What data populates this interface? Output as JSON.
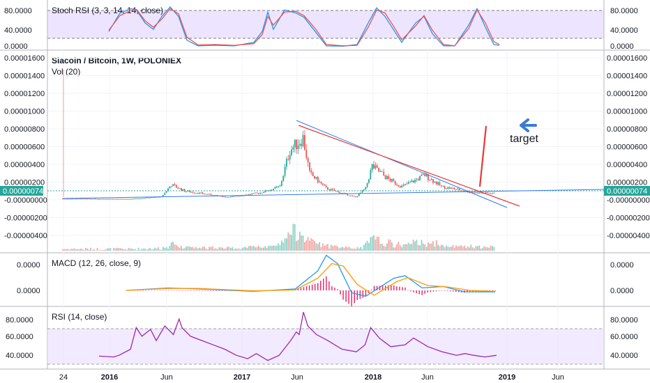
{
  "chart_data": [
    {
      "type": "line",
      "pane": "stoch",
      "title": "Stoch RSI (3, 3, 14, 14, close)",
      "ylim": [
        0,
        100
      ],
      "y_ticks": [
        "80.0000",
        "40.0000",
        "0.0000"
      ],
      "bands": [
        20,
        80
      ],
      "series": [
        {
          "color": "#2196f3",
          "points": [
            [
              0,
              35
            ],
            [
              8,
              78
            ],
            [
              16,
              88
            ],
            [
              20,
              84
            ],
            [
              26,
              55
            ],
            [
              32,
              40
            ],
            [
              38,
              70
            ],
            [
              44,
              92
            ],
            [
              50,
              70
            ],
            [
              56,
              15
            ],
            [
              64,
              2
            ],
            [
              76,
              3
            ],
            [
              90,
              2
            ],
            [
              104,
              10
            ],
            [
              110,
              35
            ],
            [
              114,
              80
            ],
            [
              118,
              40
            ],
            [
              126,
              85
            ],
            [
              134,
              78
            ],
            [
              140,
              68
            ],
            [
              148,
              35
            ],
            [
              156,
              2
            ],
            [
              168,
              1
            ],
            [
              178,
              5
            ],
            [
              186,
              55
            ],
            [
              192,
              90
            ],
            [
              198,
              70
            ],
            [
              204,
              40
            ],
            [
              210,
              10
            ],
            [
              220,
              55
            ],
            [
              226,
              70
            ],
            [
              232,
              30
            ],
            [
              240,
              2
            ],
            [
              248,
              2
            ],
            [
              258,
              50
            ],
            [
              264,
              88
            ],
            [
              270,
              45
            ],
            [
              276,
              5
            ],
            [
              280,
              3
            ]
          ]
        },
        {
          "color": "#ef5350",
          "points": [
            [
              0,
              38
            ],
            [
              8,
              72
            ],
            [
              16,
              84
            ],
            [
              20,
              86
            ],
            [
              26,
              60
            ],
            [
              32,
              45
            ],
            [
              38,
              64
            ],
            [
              44,
              88
            ],
            [
              50,
              76
            ],
            [
              56,
              22
            ],
            [
              64,
              4
            ],
            [
              76,
              5
            ],
            [
              90,
              3
            ],
            [
              104,
              7
            ],
            [
              110,
              28
            ],
            [
              114,
              70
            ],
            [
              118,
              50
            ],
            [
              126,
              80
            ],
            [
              134,
              82
            ],
            [
              140,
              72
            ],
            [
              148,
              42
            ],
            [
              156,
              5
            ],
            [
              168,
              2
            ],
            [
              178,
              3
            ],
            [
              186,
              45
            ],
            [
              192,
              85
            ],
            [
              198,
              78
            ],
            [
              204,
              48
            ],
            [
              210,
              16
            ],
            [
              220,
              48
            ],
            [
              226,
              72
            ],
            [
              232,
              38
            ],
            [
              240,
              5
            ],
            [
              248,
              2
            ],
            [
              258,
              42
            ],
            [
              264,
              85
            ],
            [
              270,
              55
            ],
            [
              276,
              12
            ],
            [
              280,
              5
            ]
          ]
        }
      ]
    },
    {
      "type": "bar",
      "pane": "price",
      "title": "Siacoin / Bitcoin, 1W, POLONIEX",
      "subtitle": "Vol (20)",
      "y_ticks": [
        "0.00001600",
        "0.00001400",
        "0.00001200",
        "0.00001000",
        "0.00000800",
        "0.00000600",
        "0.00000400",
        "0.00000200",
        "-0.00000000",
        "-0.00000200",
        "-0.00000400"
      ],
      "last_price": "0.00000074",
      "annotation": "target",
      "x_ticks": [
        "24",
        "2016",
        "Jun",
        "2017",
        "Jun",
        "2018",
        "Jun",
        "2019",
        "Jun"
      ],
      "close_profile": [
        [
          0,
          1.4e-07
        ],
        [
          40,
          1e-07
        ],
        [
          60,
          3.5e-07
        ],
        [
          66,
          1.7e-06
        ],
        [
          74,
          1e-06
        ],
        [
          100,
          3e-07
        ],
        [
          120,
          8e-07
        ],
        [
          132,
          1.5e-06
        ],
        [
          138,
          5.6e-06
        ],
        [
          146,
          7e-06
        ],
        [
          150,
          3e-06
        ],
        [
          160,
          1.3e-06
        ],
        [
          178,
          3e-07
        ],
        [
          184,
          1.3e-06
        ],
        [
          188,
          3.8e-06
        ],
        [
          198,
          2.3e-06
        ],
        [
          206,
          1.5e-06
        ],
        [
          214,
          2.2e-06
        ],
        [
          220,
          2.8e-06
        ],
        [
          230,
          1.5e-06
        ],
        [
          250,
          8e-07
        ],
        [
          262,
          7.4e-07
        ]
      ]
    },
    {
      "type": "line",
      "pane": "macd",
      "title": "MACD (12, 26, close, 9)",
      "y_ticks": [
        "0.0000",
        "0.0000"
      ],
      "series": [
        {
          "color": "#2196f3",
          "points": [
            [
              0,
              0
            ],
            [
              30,
              5
            ],
            [
              50,
              3
            ],
            [
              90,
              -2
            ],
            [
              120,
              3
            ],
            [
              136,
              40
            ],
            [
              142,
              72
            ],
            [
              150,
              55
            ],
            [
              160,
              -5
            ],
            [
              170,
              -12
            ],
            [
              190,
              25
            ],
            [
              198,
              30
            ],
            [
              210,
              5
            ],
            [
              225,
              8
            ],
            [
              240,
              -3
            ],
            [
              262,
              -3
            ]
          ]
        },
        {
          "color": "#ff9800",
          "points": [
            [
              0,
              0
            ],
            [
              30,
              4
            ],
            [
              50,
              4
            ],
            [
              90,
              -1
            ],
            [
              120,
              1
            ],
            [
              136,
              25
            ],
            [
              146,
              55
            ],
            [
              154,
              50
            ],
            [
              164,
              12
            ],
            [
              176,
              -10
            ],
            [
              192,
              18
            ],
            [
              200,
              26
            ],
            [
              214,
              10
            ],
            [
              228,
              7
            ],
            [
              244,
              0
            ],
            [
              262,
              -2
            ]
          ]
        }
      ]
    },
    {
      "type": "line",
      "pane": "rsi",
      "title": "RSI (14, close)",
      "ylim": [
        22,
        95
      ],
      "y_ticks": [
        "80.0000",
        "60.0000",
        "40.0000"
      ],
      "bands": [
        30,
        70
      ],
      "series": [
        {
          "color": "#9c27b0",
          "points": [
            [
              0,
              37
            ],
            [
              10,
              36
            ],
            [
              14,
              38
            ],
            [
              22,
              45
            ],
            [
              26,
              70
            ],
            [
              30,
              60
            ],
            [
              36,
              68
            ],
            [
              40,
              55
            ],
            [
              46,
              72
            ],
            [
              52,
              62
            ],
            [
              56,
              80
            ],
            [
              58,
              70
            ],
            [
              64,
              60
            ],
            [
              72,
              55
            ],
            [
              80,
              50
            ],
            [
              88,
              45
            ],
            [
              96,
              38
            ],
            [
              104,
              34
            ],
            [
              110,
              40
            ],
            [
              118,
              32
            ],
            [
              126,
              38
            ],
            [
              134,
              55
            ],
            [
              138,
              65
            ],
            [
              140,
              62
            ],
            [
              143,
              88
            ],
            [
              146,
              72
            ],
            [
              152,
              62
            ],
            [
              160,
              55
            ],
            [
              170,
              45
            ],
            [
              180,
              42
            ],
            [
              186,
              50
            ],
            [
              190,
              70
            ],
            [
              196,
              58
            ],
            [
              204,
              48
            ],
            [
              214,
              50
            ],
            [
              220,
              58
            ],
            [
              230,
              48
            ],
            [
              240,
              42
            ],
            [
              250,
              38
            ],
            [
              256,
              40
            ],
            [
              262,
              38
            ],
            [
              270,
              36
            ],
            [
              278,
              38
            ]
          ]
        }
      ]
    }
  ]
}
